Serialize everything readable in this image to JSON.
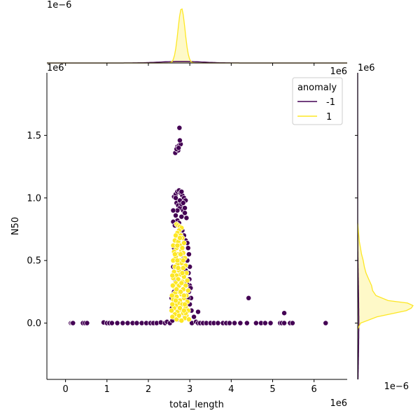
{
  "chart_data": {
    "type": "scatter",
    "title": "",
    "xlabel": "total_length",
    "ylabel": "N50",
    "x_offset_label": "1e6",
    "y_offset_label": "1e6",
    "top_marginal_offset_label": "1e−6",
    "right_marginal_offset_label": "1e−6",
    "right_marginal_axis_offset_label": "1e6",
    "top_right_offset_label": "1e6",
    "xlim": [
      -0.45,
      6.8
    ],
    "ylim": [
      -0.45,
      2.0
    ],
    "x_ticks": [
      0,
      1,
      2,
      3,
      4,
      5,
      6
    ],
    "x_tick_labels": [
      "0",
      "1",
      "2",
      "3",
      "4",
      "5",
      "6"
    ],
    "y_ticks": [
      0.0,
      0.5,
      1.0,
      1.5
    ],
    "y_tick_labels": [
      "0.0",
      "0.5",
      "1.0",
      "1.5"
    ],
    "grid": false,
    "legend": {
      "title": "anomaly",
      "placement": "top-right",
      "entries": [
        {
          "label": "-1",
          "color": "#440154"
        },
        {
          "label": "1",
          "color": "#fde725"
        }
      ]
    },
    "colors": {
      "minus_one": "#440154",
      "one": "#fde725"
    },
    "series": [
      {
        "name": "-1",
        "points": [
          [
            0.13,
            0.0
          ],
          [
            0.16,
            0.0
          ],
          [
            0.18,
            0.0
          ],
          [
            0.42,
            0.0
          ],
          [
            0.47,
            0.0
          ],
          [
            0.52,
            0.0
          ],
          [
            0.92,
            0.005
          ],
          [
            1.0,
            0.0
          ],
          [
            1.06,
            0.0
          ],
          [
            1.12,
            0.0
          ],
          [
            1.25,
            0.0
          ],
          [
            1.38,
            0.0
          ],
          [
            1.5,
            0.0
          ],
          [
            1.62,
            0.0
          ],
          [
            1.72,
            0.0
          ],
          [
            1.84,
            0.0
          ],
          [
            1.95,
            0.0
          ],
          [
            2.05,
            0.0
          ],
          [
            2.12,
            0.0
          ],
          [
            2.2,
            0.0
          ],
          [
            2.3,
            0.005
          ],
          [
            2.4,
            0.0
          ],
          [
            2.45,
            0.01
          ],
          [
            2.52,
            0.0
          ],
          [
            2.58,
            0.02
          ],
          [
            3.05,
            0.0
          ],
          [
            3.15,
            0.01
          ],
          [
            3.2,
            0.0
          ],
          [
            3.25,
            0.0
          ],
          [
            3.32,
            0.0
          ],
          [
            3.4,
            0.0
          ],
          [
            3.5,
            0.0
          ],
          [
            3.58,
            0.0
          ],
          [
            3.68,
            0.0
          ],
          [
            3.8,
            0.0
          ],
          [
            3.88,
            0.0
          ],
          [
            3.96,
            0.0
          ],
          [
            4.08,
            0.0
          ],
          [
            4.22,
            0.0
          ],
          [
            4.38,
            0.0
          ],
          [
            4.6,
            0.0
          ],
          [
            4.72,
            0.0
          ],
          [
            4.82,
            0.0
          ],
          [
            4.95,
            0.0
          ],
          [
            5.18,
            0.0
          ],
          [
            5.22,
            0.0
          ],
          [
            5.28,
            0.0
          ],
          [
            5.42,
            0.0
          ],
          [
            5.48,
            0.0
          ],
          [
            6.28,
            0.0
          ],
          [
            4.42,
            0.2
          ],
          [
            5.28,
            0.08
          ],
          [
            3.2,
            0.09
          ],
          [
            3.1,
            0.05
          ],
          [
            2.75,
            1.56
          ],
          [
            2.65,
            1.36
          ],
          [
            2.72,
            1.38
          ],
          [
            2.7,
            1.41
          ],
          [
            2.74,
            1.42
          ],
          [
            2.78,
            1.43
          ],
          [
            2.76,
            1.46
          ],
          [
            2.68,
            1.39
          ],
          [
            2.73,
            1.4
          ],
          [
            2.62,
            1.01
          ],
          [
            2.66,
            1.03
          ],
          [
            2.7,
            1.05
          ],
          [
            2.74,
            1.06
          ],
          [
            2.78,
            1.04
          ],
          [
            2.82,
            1.02
          ],
          [
            2.86,
            1.0
          ],
          [
            2.9,
            0.98
          ],
          [
            2.68,
            0.96
          ],
          [
            2.72,
            0.94
          ],
          [
            2.76,
            0.92
          ],
          [
            2.8,
            0.95
          ],
          [
            2.84,
            0.9
          ],
          [
            2.88,
            0.88
          ],
          [
            2.92,
            0.84
          ],
          [
            2.66,
            0.86
          ],
          [
            2.7,
            0.82
          ],
          [
            2.74,
            0.8
          ],
          [
            2.6,
            0.81
          ],
          [
            2.64,
            0.78
          ],
          [
            2.78,
            0.76
          ],
          [
            2.82,
            0.74
          ],
          [
            2.86,
            0.7
          ],
          [
            2.9,
            0.66
          ],
          [
            2.94,
            0.64
          ],
          [
            2.62,
            0.6
          ],
          [
            2.96,
            0.6
          ],
          [
            2.98,
            0.55
          ],
          [
            2.94,
            0.5
          ],
          [
            3.0,
            0.45
          ],
          [
            2.97,
            0.4
          ],
          [
            2.99,
            0.35
          ],
          [
            3.0,
            0.3
          ],
          [
            3.02,
            0.28
          ],
          [
            2.98,
            0.25
          ],
          [
            3.03,
            0.2
          ],
          [
            3.0,
            0.15
          ],
          [
            3.04,
            0.1
          ],
          [
            2.6,
            0.45
          ],
          [
            2.58,
            0.3
          ],
          [
            2.56,
            0.2
          ],
          [
            2.57,
            0.12
          ],
          [
            2.59,
            0.05
          ],
          [
            2.64,
            0.35
          ],
          [
            2.62,
            0.25
          ],
          [
            2.66,
            0.15
          ],
          [
            2.68,
            0.08
          ],
          [
            2.72,
            0.03
          ],
          [
            2.8,
            0.02
          ],
          [
            2.88,
            0.05
          ],
          [
            2.92,
            0.1
          ],
          [
            2.95,
            0.2
          ],
          [
            2.93,
            0.32
          ],
          [
            2.9,
            0.42
          ],
          [
            2.86,
            0.52
          ],
          [
            2.76,
            0.62
          ],
          [
            2.7,
            0.7
          ],
          [
            2.74,
            0.72
          ],
          [
            2.8,
            0.85
          ],
          [
            2.76,
            0.98
          ],
          [
            2.7,
            0.9
          ],
          [
            2.84,
            0.96
          ],
          [
            2.66,
            1.0
          ],
          [
            2.8,
            1.05
          ],
          [
            2.88,
            0.92
          ],
          [
            2.6,
            0.9
          ]
        ]
      },
      {
        "name": "1",
        "points": [
          [
            2.68,
            0.79
          ],
          [
            2.72,
            0.78
          ],
          [
            2.76,
            0.77
          ],
          [
            2.8,
            0.76
          ],
          [
            2.74,
            0.74
          ],
          [
            2.7,
            0.72
          ],
          [
            2.66,
            0.7
          ],
          [
            2.78,
            0.7
          ],
          [
            2.82,
            0.68
          ],
          [
            2.64,
            0.66
          ],
          [
            2.72,
            0.65
          ],
          [
            2.86,
            0.64
          ],
          [
            2.76,
            0.62
          ],
          [
            2.68,
            0.6
          ],
          [
            2.8,
            0.58
          ],
          [
            2.62,
            0.57
          ],
          [
            2.84,
            0.56
          ],
          [
            2.72,
            0.55
          ],
          [
            2.66,
            0.53
          ],
          [
            2.88,
            0.52
          ],
          [
            2.76,
            0.5
          ],
          [
            2.6,
            0.5
          ],
          [
            2.8,
            0.48
          ],
          [
            2.7,
            0.47
          ],
          [
            2.9,
            0.46
          ],
          [
            2.64,
            0.45
          ],
          [
            2.84,
            0.44
          ],
          [
            2.74,
            0.42
          ],
          [
            2.62,
            0.41
          ],
          [
            2.92,
            0.4
          ],
          [
            2.78,
            0.39
          ],
          [
            2.68,
            0.38
          ],
          [
            2.86,
            0.37
          ],
          [
            2.6,
            0.36
          ],
          [
            2.72,
            0.35
          ],
          [
            2.94,
            0.34
          ],
          [
            2.82,
            0.33
          ],
          [
            2.66,
            0.32
          ],
          [
            2.76,
            0.31
          ],
          [
            2.9,
            0.3
          ],
          [
            2.62,
            0.29
          ],
          [
            2.7,
            0.28
          ],
          [
            2.84,
            0.27
          ],
          [
            2.96,
            0.26
          ],
          [
            2.74,
            0.25
          ],
          [
            2.64,
            0.24
          ],
          [
            2.8,
            0.23
          ],
          [
            2.92,
            0.22
          ],
          [
            2.68,
            0.21
          ],
          [
            2.86,
            0.2
          ],
          [
            2.6,
            0.19
          ],
          [
            2.76,
            0.18
          ],
          [
            2.94,
            0.17
          ],
          [
            2.72,
            0.16
          ],
          [
            2.82,
            0.15
          ],
          [
            2.66,
            0.14
          ],
          [
            2.9,
            0.13
          ],
          [
            2.62,
            0.12
          ],
          [
            2.78,
            0.11
          ],
          [
            2.96,
            0.1
          ],
          [
            2.7,
            0.09
          ],
          [
            2.84,
            0.08
          ],
          [
            2.64,
            0.07
          ],
          [
            2.92,
            0.06
          ],
          [
            2.74,
            0.05
          ],
          [
            2.88,
            0.04
          ],
          [
            2.68,
            0.03
          ],
          [
            2.8,
            0.02
          ],
          [
            2.98,
            0.03
          ],
          [
            2.58,
            0.05
          ],
          [
            2.56,
            0.1
          ],
          [
            2.58,
            0.15
          ],
          [
            2.57,
            0.22
          ],
          [
            2.59,
            0.3
          ],
          [
            2.58,
            0.38
          ],
          [
            2.6,
            0.62
          ],
          [
            2.7,
            0.5
          ],
          [
            2.78,
            0.55
          ],
          [
            2.82,
            0.4
          ],
          [
            2.74,
            0.3
          ],
          [
            2.86,
            0.22
          ],
          [
            2.76,
            0.12
          ],
          [
            2.9,
            0.08
          ],
          [
            2.66,
            0.18
          ],
          [
            2.8,
            0.32
          ],
          [
            2.72,
            0.44
          ],
          [
            2.84,
            0.5
          ],
          [
            2.68,
            0.27
          ],
          [
            2.88,
            0.15
          ],
          [
            2.7,
            0.62
          ],
          [
            2.76,
            0.68
          ],
          [
            2.82,
            0.6
          ],
          [
            2.64,
            0.55
          ],
          [
            2.74,
            0.06
          ],
          [
            2.86,
            0.1
          ],
          [
            2.78,
            0.25
          ]
        ]
      }
    ],
    "top_marginal_kde": {
      "-1": {
        "peak_x": 2.8,
        "peak_density": 0.03,
        "bandwidth": 0.5
      },
      "1": {
        "peak_x": 2.8,
        "peak_density": 1.0,
        "bandwidth": 0.085
      }
    },
    "right_marginal_kde": {
      "-1": {
        "peak_y": 0.0,
        "peak_density": 0.02,
        "bandwidth": 0.3
      },
      "1": {
        "profile_y": [
          -0.05,
          0.0,
          0.05,
          0.1,
          0.12,
          0.14,
          0.16,
          0.18,
          0.22,
          0.26,
          0.3,
          0.35,
          0.4,
          0.45,
          0.5,
          0.55,
          0.6,
          0.65,
          0.7,
          0.75,
          0.8
        ],
        "profile_density": [
          0.0,
          0.05,
          0.35,
          0.88,
          0.97,
          1.0,
          0.9,
          0.55,
          0.33,
          0.27,
          0.25,
          0.2,
          0.15,
          0.12,
          0.1,
          0.07,
          0.05,
          0.03,
          0.02,
          0.01,
          0.0
        ]
      }
    }
  }
}
